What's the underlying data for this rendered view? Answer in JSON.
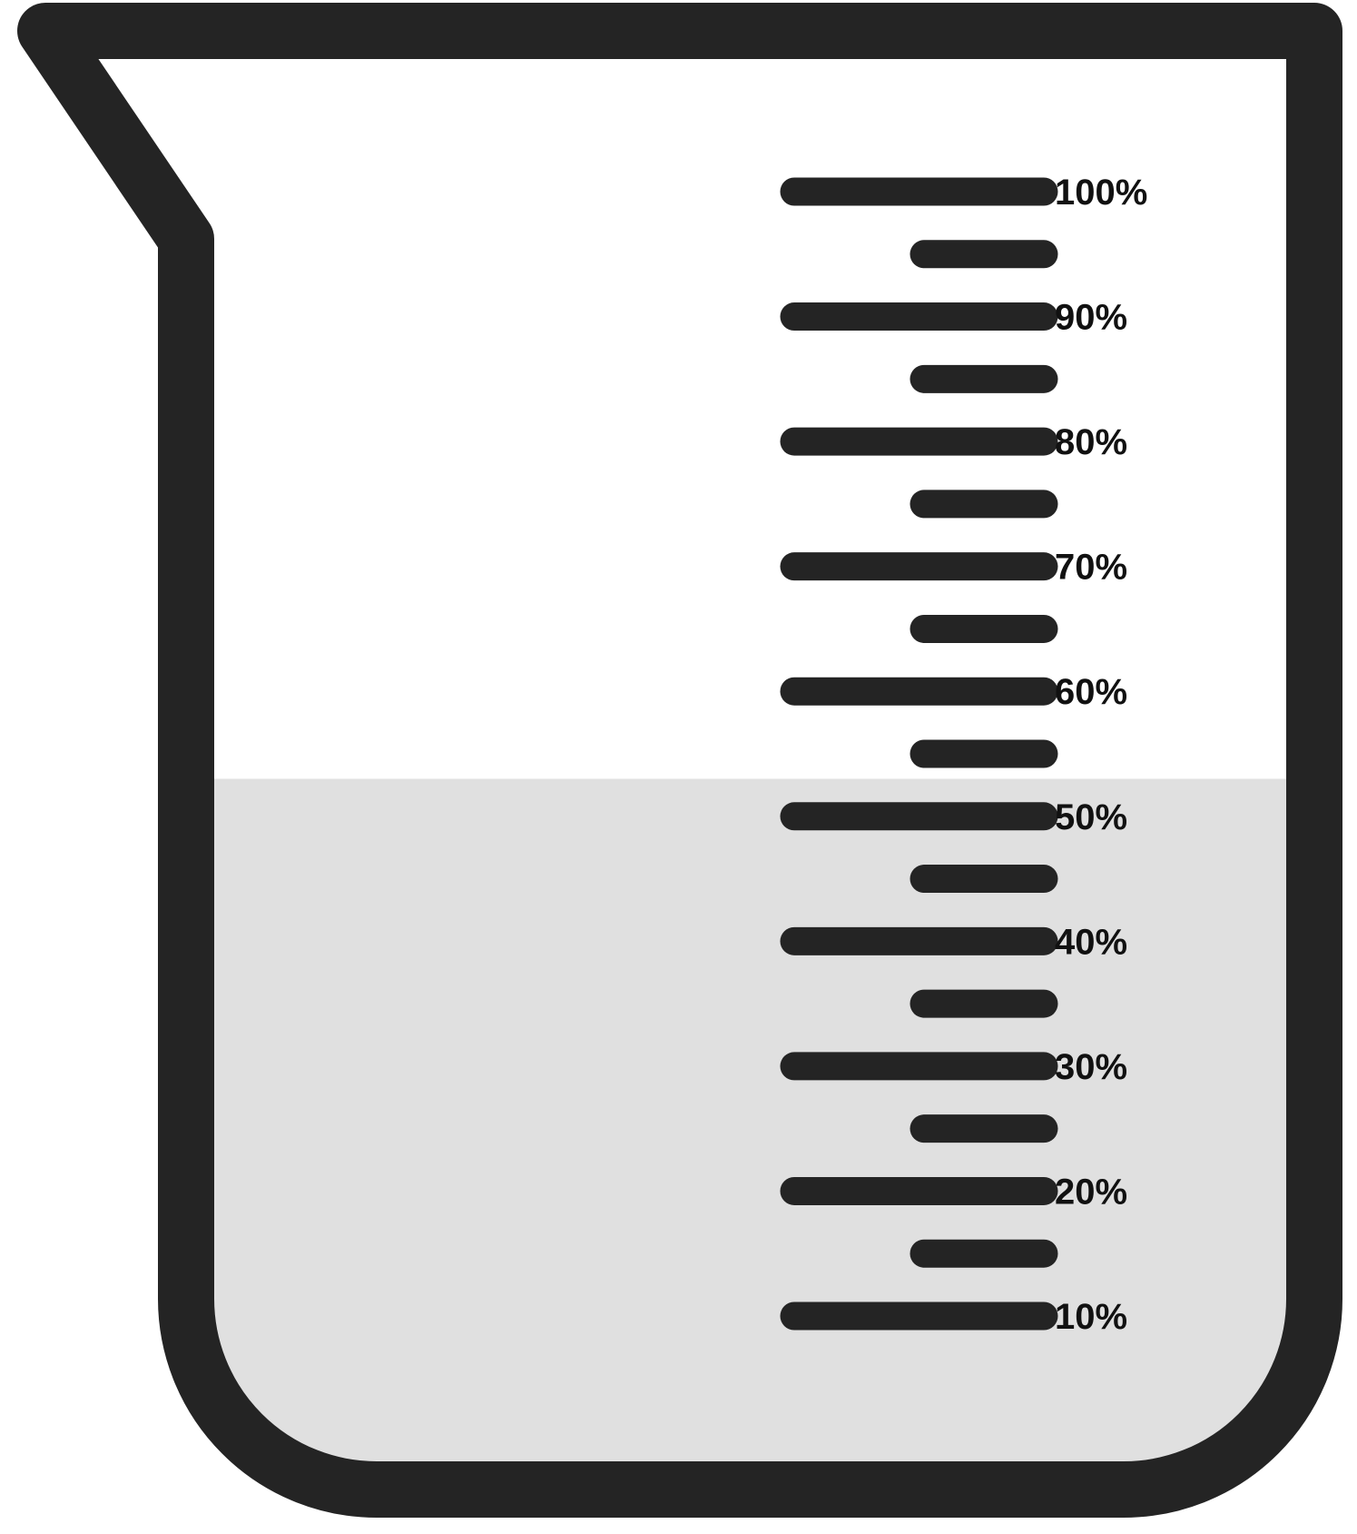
{
  "beaker": {
    "fill_level_percent": 53,
    "colors": {
      "outline": "#242424",
      "liquid": "#e0e0e0",
      "inside": "#ffffff",
      "label": "#111111"
    }
  },
  "scale": {
    "major_marks": [
      {
        "value": 100,
        "label": "100%"
      },
      {
        "value": 90,
        "label": "90%"
      },
      {
        "value": 80,
        "label": "80%"
      },
      {
        "value": 70,
        "label": "70%"
      },
      {
        "value": 60,
        "label": "60%"
      },
      {
        "value": 50,
        "label": "50%"
      },
      {
        "value": 40,
        "label": "40%"
      },
      {
        "value": 30,
        "label": "30%"
      },
      {
        "value": 20,
        "label": "20%"
      },
      {
        "value": 10,
        "label": "10%"
      }
    ],
    "minor_marks": [
      95,
      85,
      75,
      65,
      55,
      45,
      35,
      25,
      15
    ]
  }
}
